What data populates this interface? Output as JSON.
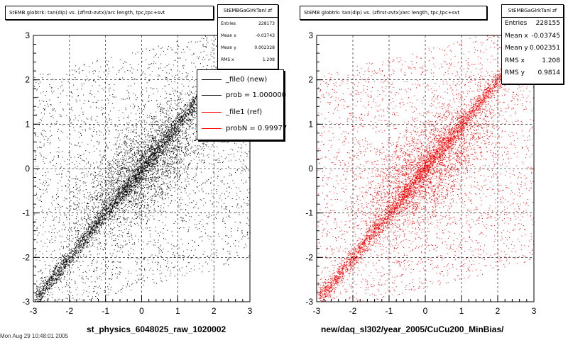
{
  "chart_data": [
    {
      "type": "scatter",
      "title": "StEMB globtrk: tan(dip) vs. (zfirst-zvtx)/arc length, tpc,tpc+svt",
      "xlim": [
        -3,
        3
      ],
      "ylim": [
        -3,
        3
      ],
      "xticks": [
        "-3",
        "-2",
        "-1",
        "0",
        "1",
        "2",
        "3"
      ],
      "yticks": [
        "-3",
        "-2",
        "-1",
        "0",
        "1",
        "2",
        "3"
      ],
      "xlabel": "st_physics_6048025_raw_1020002",
      "grid": true,
      "color": "#000000",
      "description_points": [
        [
          -2.8,
          -2.8
        ],
        [
          -2,
          -2
        ],
        [
          -1,
          -1
        ],
        [
          0,
          0
        ],
        [
          1,
          1
        ],
        [
          2,
          2
        ],
        [
          2.8,
          2.8
        ]
      ],
      "stats": {
        "title": "StEMBGaGlrkTanl zf",
        "rows": [
          {
            "label": "Entries",
            "value": "228173"
          },
          {
            "label": "Mean x",
            "value": "-0.03743"
          },
          {
            "label": "Mean y",
            "value": "0.002328"
          },
          {
            "label": "RMS x",
            "value": "1.208"
          }
        ]
      },
      "legend": {
        "entries": [
          {
            "label": "_file0 (new)",
            "color": "#000000"
          },
          {
            "label": "prob = 1.000000",
            "color": "#000000"
          },
          {
            "label": "_file1 (ref)",
            "color": "#ff0000"
          },
          {
            "label": "probN = 0.99977",
            "color": "#ff0000"
          }
        ]
      }
    },
    {
      "type": "scatter",
      "title": "StEMB globtrk: tan(dip) vs. (zfirst-zvtx)/arc length, tpc,tpc+svt",
      "xlim": [
        -3,
        3
      ],
      "ylim": [
        -3,
        3
      ],
      "xticks": [
        "-3",
        "-2",
        "-1",
        "0",
        "1",
        "2",
        "3"
      ],
      "yticks": [
        "-3",
        "-2",
        "-1",
        "0",
        "1",
        "2",
        "3"
      ],
      "xlabel": "new/daq_sl302/year_2005/CuCu200_MinBias/",
      "grid": true,
      "color": "#ff0000",
      "stats": {
        "title": "StEMBGaGlrkTanl zf",
        "rows": [
          {
            "label": "Entries",
            "value": "228155"
          },
          {
            "label": "Mean x",
            "value": "-0.03745"
          },
          {
            "label": "Mean y",
            "value": "0.002351"
          },
          {
            "label": "RMS x",
            "value": "1.208"
          },
          {
            "label": "RMS y",
            "value": "0.9814"
          }
        ]
      }
    }
  ],
  "footer": "Mon Aug 29 10:48:01 2005"
}
